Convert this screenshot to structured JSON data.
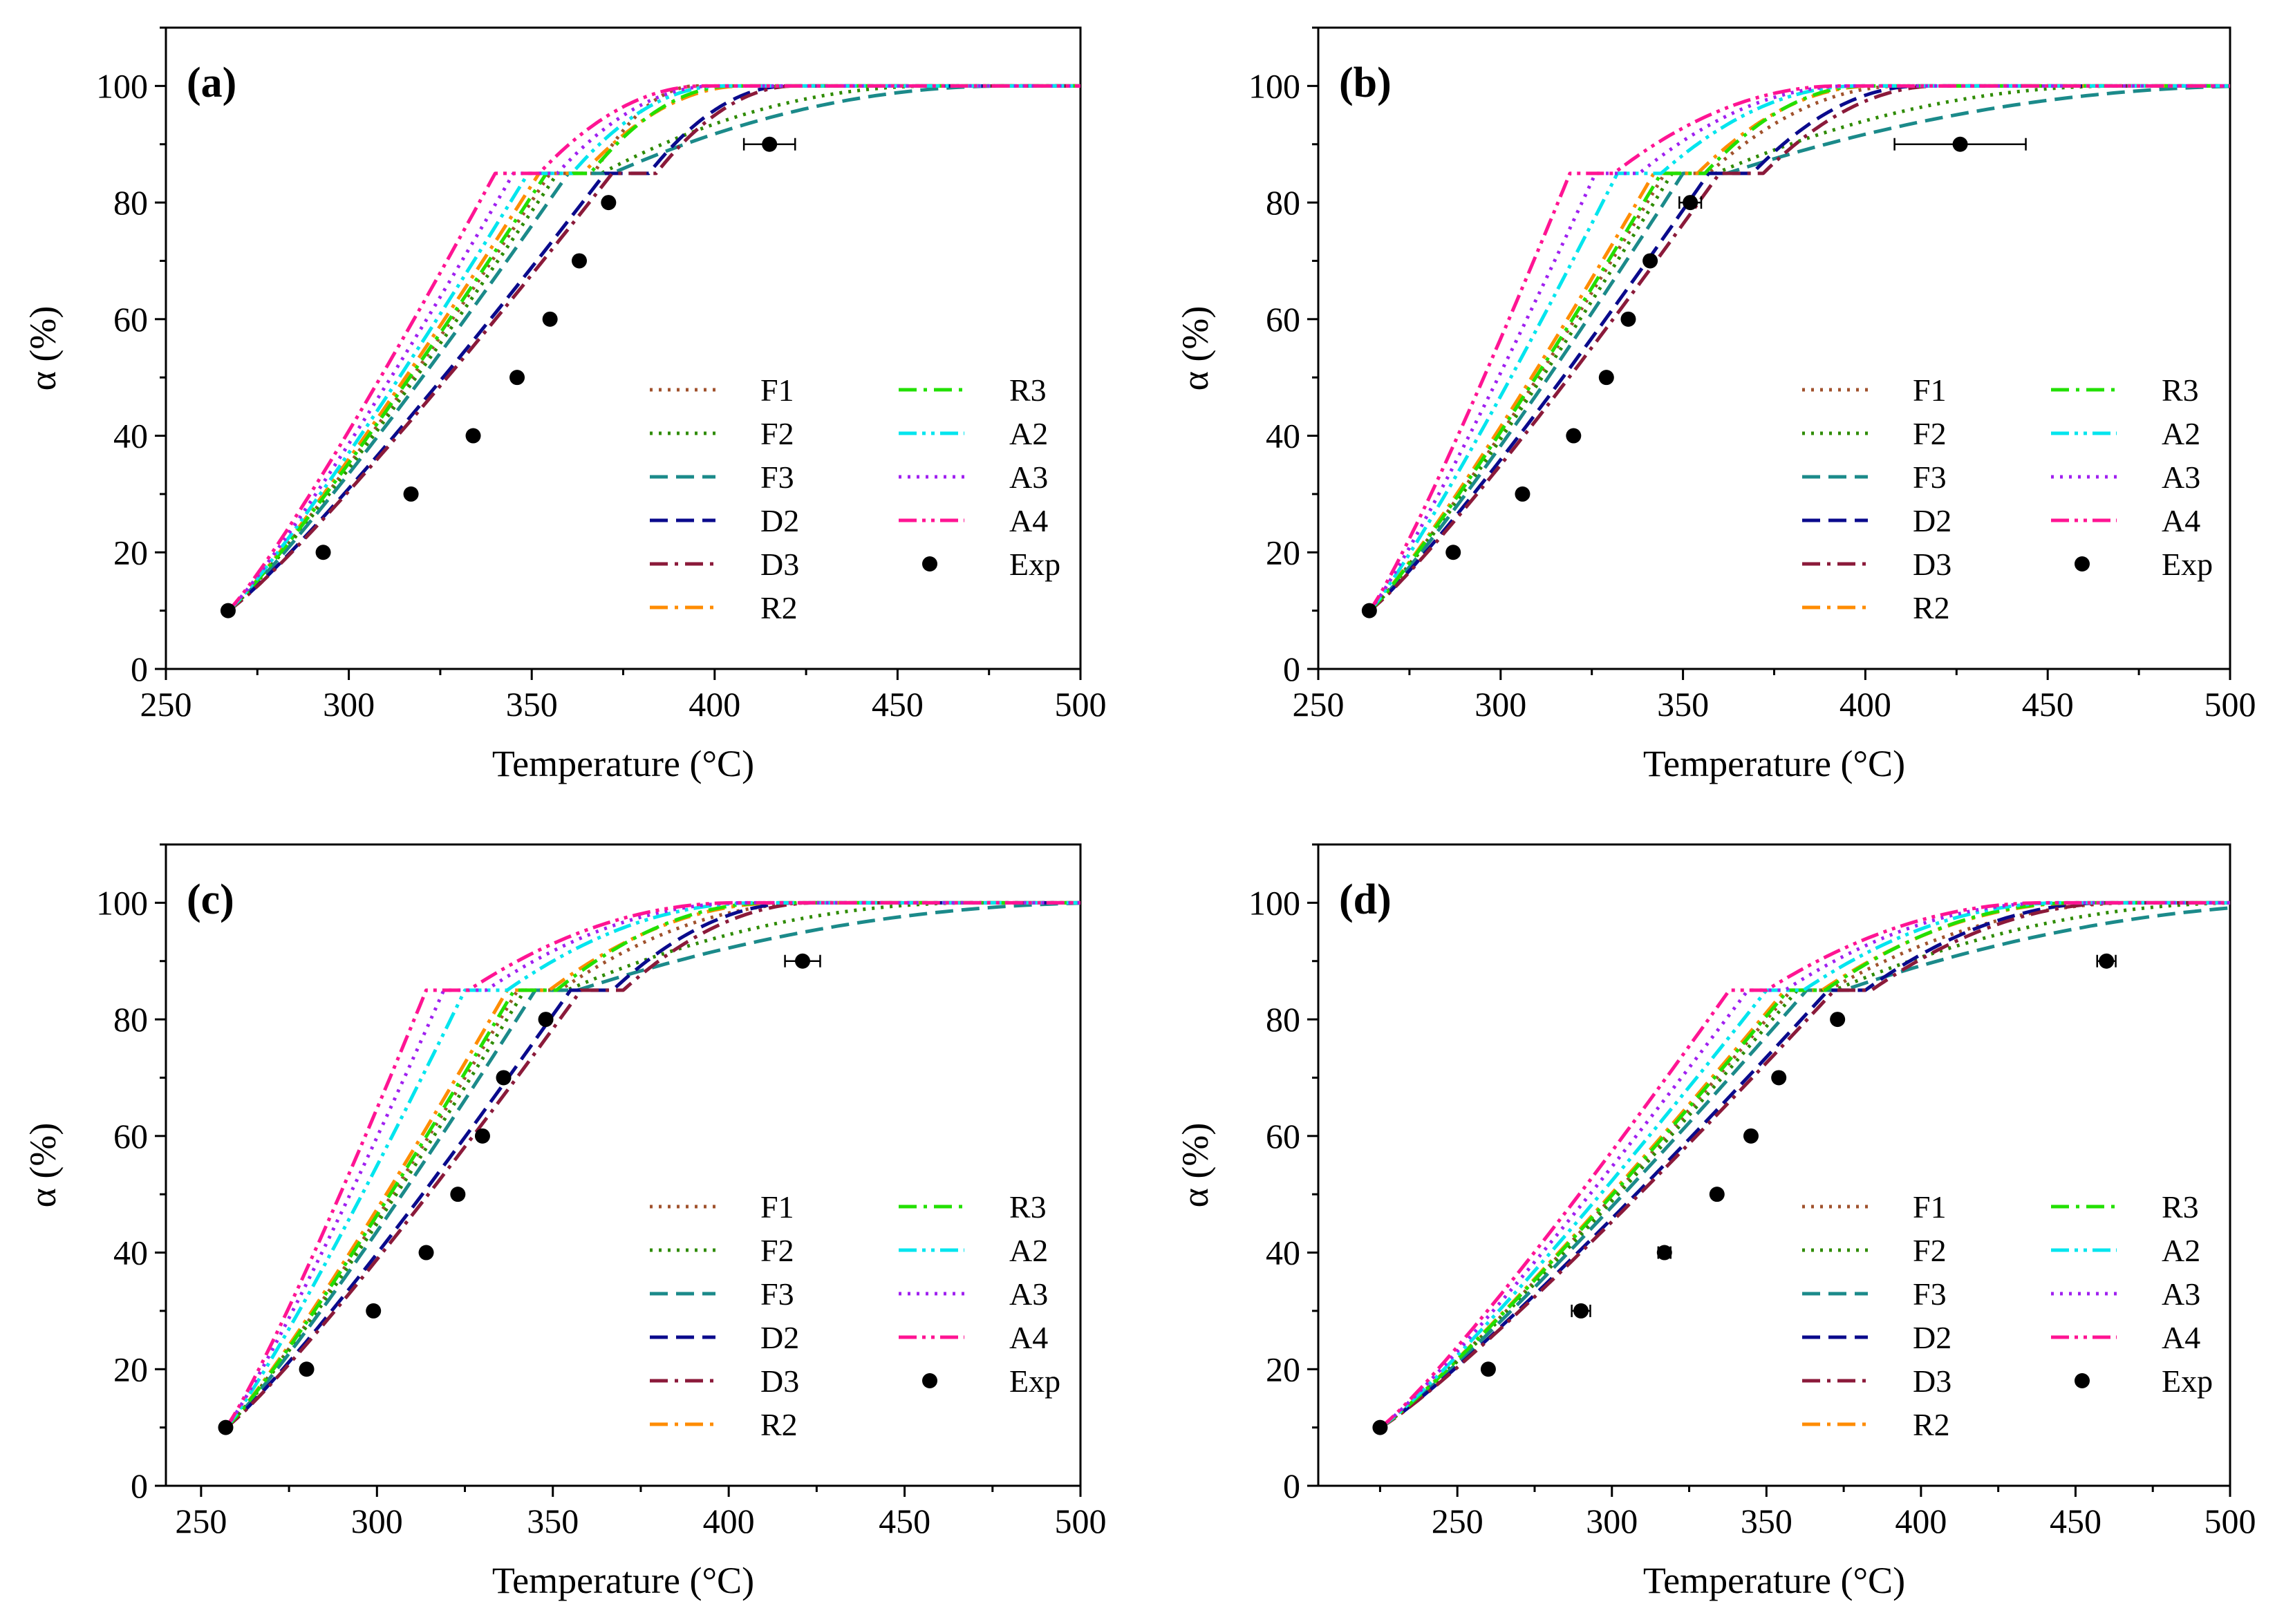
{
  "chart_data": [
    {
      "type": "line",
      "panel": "(a)",
      "xlabel": "Temperature (°C)",
      "ylabel": "α (%)",
      "xlim": [
        250,
        500
      ],
      "ylim": [
        0,
        110
      ],
      "xticks": [
        250,
        300,
        350,
        400,
        450,
        500
      ],
      "yticks": [
        0,
        20,
        40,
        60,
        80,
        100
      ],
      "legend_position": "lower-right",
      "plateau": 85,
      "series": [
        {
          "name": "F1",
          "x": [
            267,
            355,
            395
          ],
          "dash": "dot"
        },
        {
          "name": "F2",
          "x": [
            267,
            357,
            460
          ],
          "dash": "dot"
        },
        {
          "name": "F3",
          "x": [
            267,
            360,
            480
          ],
          "dash": "dash"
        },
        {
          "name": "D2",
          "x": [
            267,
            370,
            420
          ],
          "dash": "dash"
        },
        {
          "name": "D3",
          "x": [
            267,
            372,
            422
          ],
          "dash": "dashdot"
        },
        {
          "name": "R2",
          "x": [
            267,
            352,
            408
          ],
          "dash": "dashdot"
        },
        {
          "name": "R3",
          "x": [
            267,
            354,
            405
          ],
          "dash": "dashdot"
        },
        {
          "name": "A2",
          "x": [
            267,
            349,
            402
          ],
          "dash": "dashdotdot"
        },
        {
          "name": "A3",
          "x": [
            267,
            345,
            400
          ],
          "dash": "dot"
        },
        {
          "name": "A4",
          "x": [
            267,
            340,
            397
          ],
          "dash": "dashdotdot"
        }
      ],
      "exp": {
        "name": "Exp",
        "x": [
          267,
          293,
          317,
          334,
          346,
          355,
          363,
          371,
          415
        ],
        "y": [
          10,
          20,
          30,
          40,
          50,
          60,
          70,
          80,
          90
        ],
        "xerr": [
          0,
          0,
          0,
          0,
          0,
          0,
          0,
          0,
          7
        ]
      }
    },
    {
      "type": "line",
      "panel": "(b)",
      "xlabel": "Temperature (°C)",
      "ylabel": "α (%)",
      "xlim": [
        250,
        500
      ],
      "ylim": [
        0,
        110
      ],
      "xticks": [
        250,
        300,
        350,
        400,
        450,
        500
      ],
      "yticks": [
        0,
        20,
        40,
        60,
        80,
        100
      ],
      "legend_position": "lower-right",
      "plateau": 85,
      "series": [
        {
          "name": "F1",
          "x": [
            264,
            345,
            410
          ],
          "dash": "dot"
        },
        {
          "name": "F2",
          "x": [
            264,
            347,
            470
          ],
          "dash": "dot"
        },
        {
          "name": "F3",
          "x": [
            264,
            350,
            510
          ],
          "dash": "dash"
        },
        {
          "name": "D2",
          "x": [
            264,
            357,
            415
          ],
          "dash": "dash"
        },
        {
          "name": "D3",
          "x": [
            264,
            360,
            420
          ],
          "dash": "dashdot"
        },
        {
          "name": "R2",
          "x": [
            264,
            342,
            402
          ],
          "dash": "dashdot"
        },
        {
          "name": "R3",
          "x": [
            264,
            344,
            400
          ],
          "dash": "dashdot"
        },
        {
          "name": "A2",
          "x": [
            264,
            332,
            398
          ],
          "dash": "dashdotdot"
        },
        {
          "name": "A3",
          "x": [
            264,
            326,
            396
          ],
          "dash": "dot"
        },
        {
          "name": "A4",
          "x": [
            264,
            319,
            393
          ],
          "dash": "dashdotdot"
        }
      ],
      "exp": {
        "name": "Exp",
        "x": [
          264,
          287,
          306,
          320,
          329,
          335,
          341,
          352,
          426
        ],
        "y": [
          10,
          20,
          30,
          40,
          50,
          60,
          70,
          80,
          90
        ],
        "xerr": [
          0,
          0,
          0,
          0,
          0,
          0,
          0,
          3,
          18
        ]
      }
    },
    {
      "type": "line",
      "panel": "(c)",
      "xlabel": "Temperature (°C)",
      "ylabel": "α (%)",
      "xlim": [
        240,
        500
      ],
      "ylim": [
        0,
        110
      ],
      "xticks": [
        250,
        300,
        350,
        400,
        450,
        500
      ],
      "yticks": [
        0,
        20,
        40,
        60,
        80,
        100
      ],
      "legend_position": "lower-right",
      "plateau": 85,
      "series": [
        {
          "name": "F1",
          "x": [
            257,
            340,
            425
          ],
          "dash": "dot"
        },
        {
          "name": "F2",
          "x": [
            257,
            342,
            470
          ],
          "dash": "dot"
        },
        {
          "name": "F3",
          "x": [
            257,
            345,
            510
          ],
          "dash": "dash"
        },
        {
          "name": "D2",
          "x": [
            257,
            355,
            420
          ],
          "dash": "dash"
        },
        {
          "name": "D3",
          "x": [
            257,
            358,
            425
          ],
          "dash": "dashdot"
        },
        {
          "name": "R2",
          "x": [
            257,
            337,
            415
          ],
          "dash": "dashdot"
        },
        {
          "name": "R3",
          "x": [
            257,
            339,
            412
          ],
          "dash": "dashdot"
        },
        {
          "name": "A2",
          "x": [
            257,
            325,
            408
          ],
          "dash": "dashdotdot"
        },
        {
          "name": "A3",
          "x": [
            257,
            319,
            405
          ],
          "dash": "dot"
        },
        {
          "name": "A4",
          "x": [
            257,
            314,
            402
          ],
          "dash": "dashdotdot"
        }
      ],
      "exp": {
        "name": "Exp",
        "x": [
          257,
          280,
          299,
          314,
          323,
          330,
          336,
          348,
          421
        ],
        "y": [
          10,
          20,
          30,
          40,
          50,
          60,
          70,
          80,
          90
        ],
        "xerr": [
          0,
          0,
          0,
          0,
          0,
          0,
          0,
          0,
          5
        ]
      }
    },
    {
      "type": "line",
      "panel": "(d)",
      "xlabel": "Temperature (°C)",
      "ylabel": "α (%)",
      "xlim": [
        205,
        500
      ],
      "ylim": [
        0,
        110
      ],
      "xticks": [
        250,
        300,
        350,
        400,
        450,
        500
      ],
      "yticks": [
        0,
        20,
        40,
        60,
        80,
        100
      ],
      "legend_position": "lower-right",
      "plateau": 85,
      "series": [
        {
          "name": "F1",
          "x": [
            225,
            358,
            470
          ],
          "dash": "dot"
        },
        {
          "name": "F2",
          "x": [
            225,
            360,
            505
          ],
          "dash": "dot"
        },
        {
          "name": "F3",
          "x": [
            225,
            363,
            540
          ],
          "dash": "dash"
        },
        {
          "name": "D2",
          "x": [
            225,
            370,
            460
          ],
          "dash": "dash"
        },
        {
          "name": "D3",
          "x": [
            225,
            372,
            465
          ],
          "dash": "dashdot"
        },
        {
          "name": "R2",
          "x": [
            225,
            356,
            452
          ],
          "dash": "dashdot"
        },
        {
          "name": "R3",
          "x": [
            225,
            357,
            450
          ],
          "dash": "dashdot"
        },
        {
          "name": "A2",
          "x": [
            225,
            350,
            446
          ],
          "dash": "dashdotdot"
        },
        {
          "name": "A3",
          "x": [
            225,
            344,
            443
          ],
          "dash": "dot"
        },
        {
          "name": "A4",
          "x": [
            225,
            338,
            440
          ],
          "dash": "dashdotdot"
        }
      ],
      "exp": {
        "name": "Exp",
        "x": [
          225,
          260,
          290,
          317,
          334,
          345,
          354,
          373,
          460
        ],
        "y": [
          10,
          20,
          30,
          40,
          50,
          60,
          70,
          80,
          90
        ],
        "xerr": [
          0,
          0,
          3,
          2,
          0,
          0,
          0,
          0,
          3
        ]
      }
    }
  ],
  "colors": {
    "F1": "#a0522d",
    "F2": "#2e8b00",
    "F3": "#1b8a8a",
    "D2": "#0a0a8c",
    "D3": "#8b1a3a",
    "R2": "#ff8c00",
    "R3": "#22e000",
    "A2": "#00e5ee",
    "A3": "#a020f0",
    "A4": "#ff1493",
    "Exp": "#000000"
  }
}
